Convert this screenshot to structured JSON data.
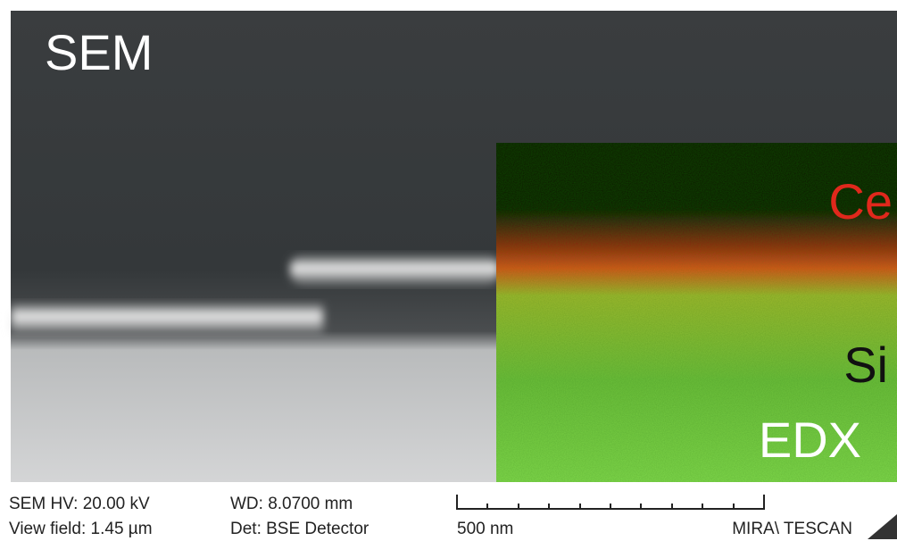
{
  "image": {
    "labels": {
      "sem": "SEM",
      "ce": "Ce",
      "si": "Si",
      "edx": "EDX"
    }
  },
  "info_bar": {
    "hv": "SEM HV: 20.00 kV",
    "view_field": "View field: 1.45 µm",
    "wd": "WD: 8.0700 mm",
    "det": "Det: BSE Detector",
    "scale": "500 nm",
    "brand": "MIRA\\ TESCAN"
  }
}
